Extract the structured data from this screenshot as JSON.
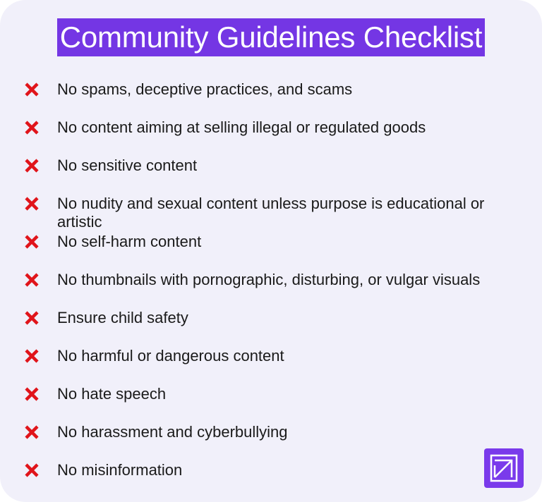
{
  "title": "Community Guidelines Checklist",
  "accent_color": "#7436e4",
  "icon_color": "#e0141a",
  "items": [
    {
      "icon": "x-mark-icon",
      "text": "No spams, deceptive practices, and scams"
    },
    {
      "icon": "x-mark-icon",
      "text": "No content aiming at selling illegal or regulated goods"
    },
    {
      "icon": "x-mark-icon",
      "text": "No sensitive content"
    },
    {
      "icon": "x-mark-icon",
      "text": "No nudity and sexual content unless purpose is educational or artistic"
    },
    {
      "icon": "x-mark-icon",
      "text": "No self-harm content"
    },
    {
      "icon": "x-mark-icon",
      "text": "No thumbnails with pornographic, disturbing, or vulgar visuals"
    },
    {
      "icon": "x-mark-icon",
      "text": "Ensure child safety"
    },
    {
      "icon": "x-mark-icon",
      "text": "No harmful or dangerous content"
    },
    {
      "icon": "x-mark-icon",
      "text": "No hate speech"
    },
    {
      "icon": "x-mark-icon",
      "text": "No harassment and cyberbullying"
    },
    {
      "icon": "x-mark-icon",
      "text": "No misinformation"
    }
  ],
  "logo_icon": "brand-logo-icon"
}
